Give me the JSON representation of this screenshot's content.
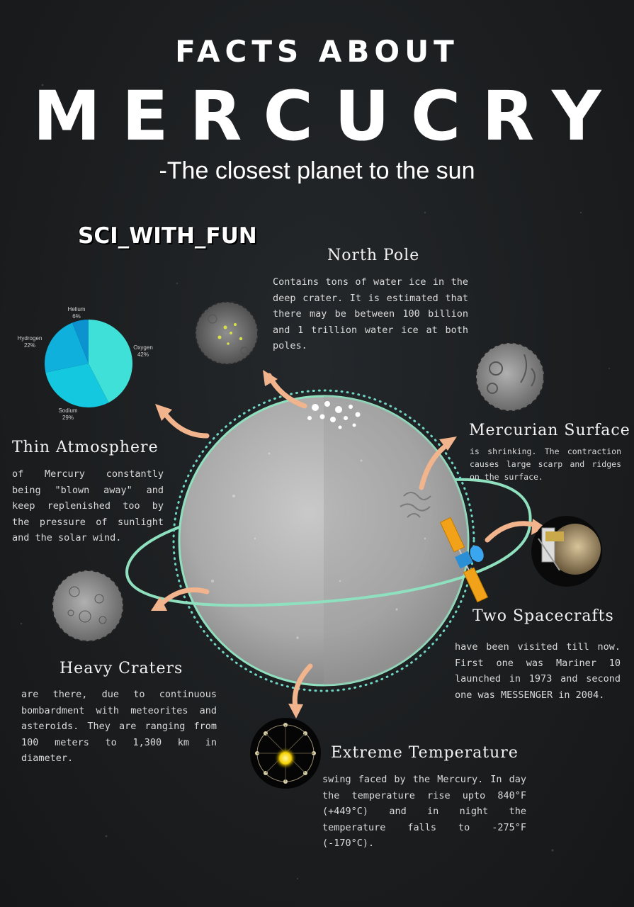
{
  "header": {
    "line1": "FACTS ABOUT",
    "line2": "MERCUCRY",
    "subtitle": "-The closest planet to the sun"
  },
  "watermark": "SCI_WITH_FUN",
  "facts": {
    "north_pole": {
      "title": "North Pole",
      "text": "Contains tons of water ice in the deep crater. It is estimated that there may be between 100 billion and 1 trillion water ice at both poles."
    },
    "surface": {
      "title": "Mercurian Surface",
      "text": "is shrinking. The contraction causes large scarp and ridges on the surface."
    },
    "atmosphere": {
      "title": "Thin Atmosphere",
      "text": "of Mercury constantly being \"blown away\" and keep replenished too by the pressure of sunlight and the solar wind."
    },
    "spacecrafts": {
      "title": "Two Spacecrafts",
      "text": "have been visited till now. First one was Mariner 10 launched in 1973 and second one was MESSENGER in 2004."
    },
    "craters": {
      "title": "Heavy Craters",
      "text": "are there, due to continuous bombardment with meteorites and asteroids. They are ranging from 100 meters to 1,300 km in diameter."
    },
    "temperature": {
      "title": "Extreme Temperature",
      "text": "swing faced by the Mercury. In day the temperature rise upto 840°F (+449°C) and in night the temperature falls to -275°F (-170°C)."
    }
  },
  "atmosphere_pie": {
    "labels": {
      "helium": "Helium",
      "helium_pct": "6%",
      "oxygen": "Oxygen",
      "oxygen_pct": "42%",
      "hydrogen": "Hydrogen",
      "hydrogen_pct": "22%",
      "sodium": "Sodium",
      "sodium_pct": "29%"
    },
    "slices": [
      {
        "name": "Oxygen",
        "value": 42,
        "color": "#3fe0d8"
      },
      {
        "name": "Sodium",
        "value": 29,
        "color": "#14c8e0"
      },
      {
        "name": "Hydrogen",
        "value": 22,
        "color": "#0fb0dc"
      },
      {
        "name": "Helium",
        "value": 6,
        "color": "#0b92cf"
      }
    ]
  },
  "colors": {
    "arrow": "#f2b48c",
    "orbit": "#8fe0bf",
    "background": "#1c1f21"
  }
}
